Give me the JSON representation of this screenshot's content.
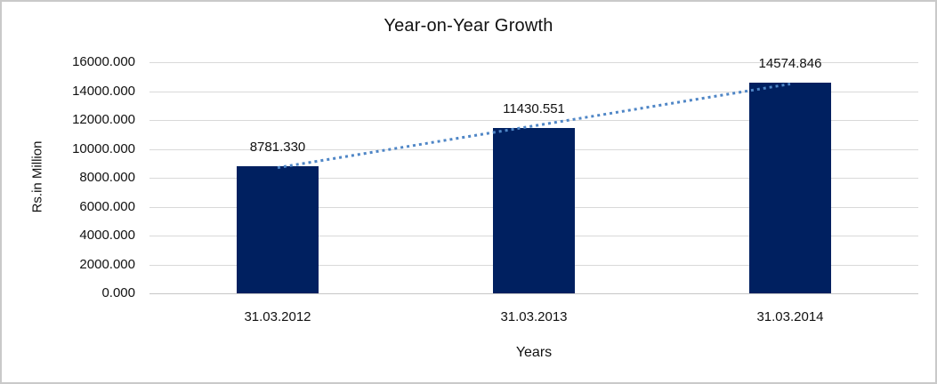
{
  "chart_data": {
    "type": "bar",
    "title": "Year-on-Year Growth",
    "xlabel": "Years",
    "ylabel": "Rs.in Million",
    "categories": [
      "31.03.2012",
      "31.03.2013",
      "31.03.2014"
    ],
    "values": [
      8781.33,
      11430.551,
      14574.846
    ],
    "data_labels": [
      "8781.330",
      "11430.551",
      "14574.846"
    ],
    "ylim": [
      0,
      16000
    ],
    "y_ticks": [
      0,
      2000,
      4000,
      6000,
      8000,
      10000,
      12000,
      14000,
      16000
    ],
    "y_tick_labels": [
      "0.000",
      "2000.000",
      "4000.000",
      "6000.000",
      "8000.000",
      "10000.000",
      "12000.000",
      "14000.000",
      "16000.000"
    ],
    "grid": true,
    "legend": "none",
    "bar_color": "#002060",
    "gridline_color": "#d9d9d9",
    "trendline": {
      "type": "linear",
      "style": "dotted",
      "color": "#4f86c6"
    }
  }
}
